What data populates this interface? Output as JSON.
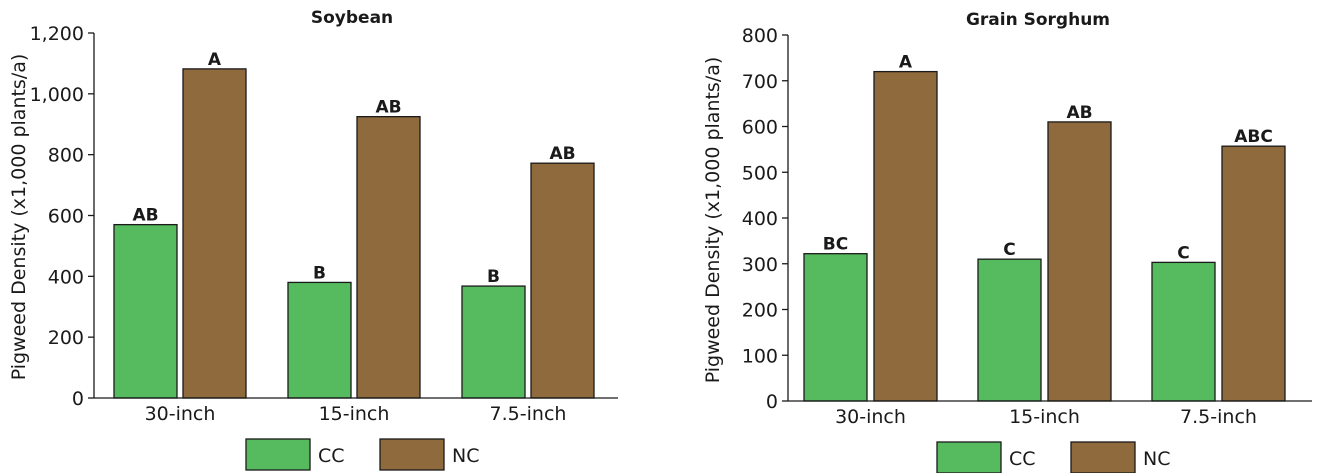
{
  "chart_data": [
    {
      "type": "bar",
      "title": "Soybean",
      "xlabel": "",
      "ylabel": "Pigweed Density (x1,000 plants/a)",
      "ylim": [
        0,
        1200
      ],
      "yticks": [
        "0",
        "200",
        "400",
        "600",
        "800",
        "1,000",
        "1,200"
      ],
      "ytick_values": [
        0,
        200,
        400,
        600,
        800,
        1000,
        1200
      ],
      "grid": false,
      "legend_position": "bottom-center",
      "categories": [
        "30-inch",
        "15-inch",
        "7.5-inch"
      ],
      "series": [
        {
          "name": "CC",
          "color": "#55bb5e",
          "values": [
            570,
            380,
            368
          ],
          "labels": [
            "AB",
            "B",
            "B"
          ]
        },
        {
          "name": "NC",
          "color": "#8f6a3c",
          "values": [
            1082,
            925,
            772
          ],
          "labels": [
            "A",
            "AB",
            "AB"
          ]
        }
      ]
    },
    {
      "type": "bar",
      "title": "Grain Sorghum",
      "xlabel": "",
      "ylabel": "Pigweed Density (x1,000 plants/a)",
      "ylim": [
        0,
        800
      ],
      "yticks": [
        "0",
        "100",
        "200",
        "300",
        "400",
        "500",
        "600",
        "700",
        "800"
      ],
      "ytick_values": [
        0,
        100,
        200,
        300,
        400,
        500,
        600,
        700,
        800
      ],
      "grid": false,
      "legend_position": "bottom-center",
      "categories": [
        "30-inch",
        "15-inch",
        "7.5-inch"
      ],
      "series": [
        {
          "name": "CC",
          "color": "#55bb5e",
          "values": [
            322,
            310,
            303
          ],
          "labels": [
            "BC",
            "C",
            "C"
          ]
        },
        {
          "name": "NC",
          "color": "#8f6a3c",
          "values": [
            720,
            610,
            557
          ],
          "labels": [
            "A",
            "AB",
            "ABC"
          ]
        }
      ]
    }
  ]
}
